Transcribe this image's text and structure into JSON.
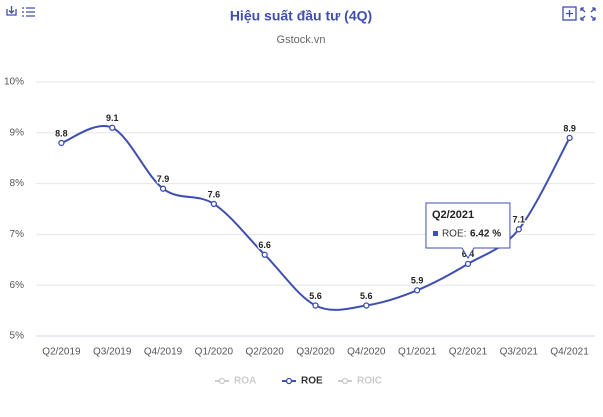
{
  "chart_data": {
    "type": "line",
    "title": "Hiệu suất đầu tư (4Q)",
    "subtitle": "Gstock.vn",
    "categories": [
      "Q2/2019",
      "Q3/2019",
      "Q4/2019",
      "Q1/2020",
      "Q2/2020",
      "Q3/2020",
      "Q4/2020",
      "Q1/2021",
      "Q2/2021",
      "Q3/2021",
      "Q4/2021"
    ],
    "series": [
      {
        "name": "ROA",
        "color": "#cccccc",
        "hidden": true,
        "values": [
          null,
          null,
          null,
          null,
          null,
          null,
          null,
          null,
          null,
          null,
          null
        ]
      },
      {
        "name": "ROE",
        "color": "#3f4fb0",
        "hidden": false,
        "values": [
          8.8,
          9.1,
          7.9,
          7.6,
          6.6,
          5.6,
          5.6,
          5.9,
          6.42,
          7.1,
          8.9
        ],
        "value_labels": [
          "8.8",
          "9.1",
          "7.9",
          "7.6",
          "6.6",
          "5.6",
          "5.6",
          "5.9",
          "6.4",
          "7.1",
          "8.9"
        ]
      },
      {
        "name": "ROIC",
        "color": "#cccccc",
        "hidden": true,
        "values": [
          null,
          null,
          null,
          null,
          null,
          null,
          null,
          null,
          null,
          null,
          null
        ]
      }
    ],
    "ylim": [
      5,
      10
    ],
    "yticks": [
      {
        "value": 5,
        "label": "5%"
      },
      {
        "value": 6,
        "label": "6%"
      },
      {
        "value": 7,
        "label": "7%"
      },
      {
        "value": 8,
        "label": "8%"
      },
      {
        "value": 9,
        "label": "9%"
      },
      {
        "value": 10,
        "label": "10%"
      }
    ],
    "grid": true,
    "tooltip": {
      "index": 8,
      "label": "ROE:",
      "value": "6.42 %"
    }
  }
}
